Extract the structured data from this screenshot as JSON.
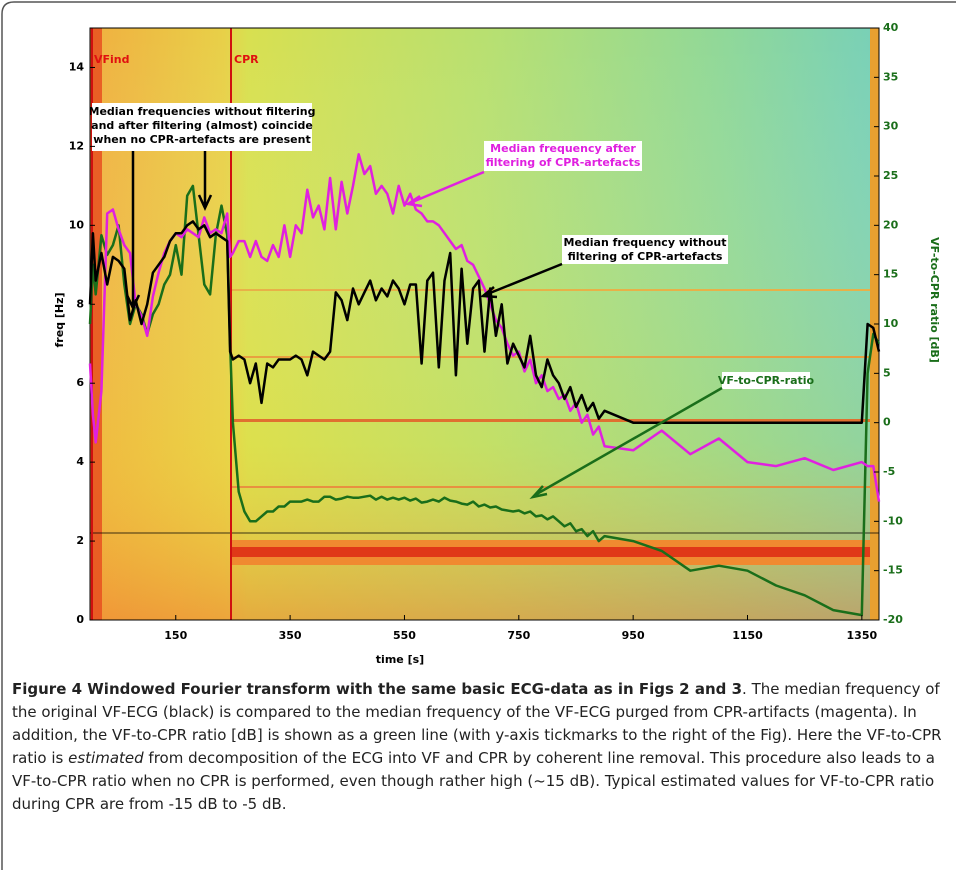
{
  "chart_data": {
    "type": "line",
    "x_label": "time [s]",
    "y_label": "freq [Hz]",
    "y2_label": "VF-to-CPR ratio [dB]",
    "xlim": [
      0,
      1380
    ],
    "xticks": [
      150,
      350,
      550,
      750,
      950,
      1150,
      1350
    ],
    "ylim": [
      0,
      15
    ],
    "yticks": [
      0,
      2,
      4,
      6,
      8,
      10,
      12,
      14
    ],
    "y2lim": [
      -20,
      40
    ],
    "y2ticks": [
      -20,
      -15,
      -10,
      -5,
      0,
      5,
      10,
      15,
      20,
      25,
      30,
      35,
      40
    ],
    "markers": [
      "VFind",
      "CPR"
    ],
    "annotations": [
      [
        "Median frequencies without filtering",
        "and after filtering (almost) coincide",
        "when no CPR-artefacts are present"
      ],
      [
        "Median frequency after",
        "filtering of CPR-artefacts"
      ],
      [
        "Median frequency without",
        "filtering of CPR-artefacts"
      ],
      [
        "VF-to-CPR-ratio"
      ]
    ],
    "x": [
      0,
      5,
      10,
      20,
      30,
      40,
      50,
      60,
      70,
      80,
      90,
      100,
      110,
      120,
      130,
      140,
      150,
      160,
      170,
      180,
      190,
      200,
      210,
      220,
      230,
      240,
      245,
      250,
      260,
      270,
      280,
      290,
      300,
      310,
      320,
      330,
      340,
      350,
      360,
      370,
      380,
      390,
      400,
      410,
      420,
      430,
      440,
      450,
      460,
      470,
      480,
      490,
      500,
      510,
      520,
      530,
      540,
      550,
      560,
      570,
      580,
      590,
      600,
      610,
      620,
      630,
      640,
      650,
      660,
      670,
      680,
      690,
      700,
      710,
      720,
      730,
      740,
      750,
      760,
      770,
      780,
      790,
      800,
      810,
      820,
      830,
      840,
      850,
      860,
      870,
      880,
      890,
      900,
      950,
      1000,
      1050,
      1100,
      1150,
      1200,
      1250,
      1300,
      1350,
      1360,
      1370,
      1380
    ],
    "series": [
      {
        "color": "#000000",
        "axis": "y",
        "values": [
          8.0,
          9.8,
          8.6,
          9.3,
          8.5,
          9.2,
          9.1,
          8.9,
          7.6,
          8.1,
          7.5,
          8.0,
          8.8,
          9.0,
          9.2,
          9.6,
          9.8,
          9.8,
          10.0,
          10.1,
          9.9,
          10.0,
          9.7,
          9.8,
          9.7,
          9.6,
          6.8,
          6.6,
          6.7,
          6.6,
          6.0,
          6.5,
          5.5,
          6.5,
          6.4,
          6.6,
          6.6,
          6.6,
          6.7,
          6.6,
          6.2,
          6.8,
          6.7,
          6.6,
          6.8,
          8.3,
          8.1,
          7.6,
          8.4,
          8.0,
          8.3,
          8.6,
          8.1,
          8.4,
          8.2,
          8.6,
          8.4,
          8.0,
          8.5,
          8.5,
          6.5,
          8.6,
          8.8,
          6.4,
          8.6,
          9.3,
          6.2,
          8.9,
          7.0,
          8.4,
          8.6,
          6.8,
          8.4,
          7.2,
          8.0,
          6.5,
          7.0,
          6.7,
          6.4,
          7.2,
          6.2,
          5.9,
          6.6,
          6.2,
          6.0,
          5.6,
          5.9,
          5.4,
          5.7,
          5.3,
          5.5,
          5.1,
          5.3,
          5.0,
          5.0,
          5.0,
          5.0,
          5.0,
          5.0,
          5.0,
          5.0,
          5.0,
          7.5,
          7.4,
          6.8
        ]
      },
      {
        "color": "#e020e0",
        "axis": "y",
        "values": [
          6.5,
          5.2,
          4.5,
          5.8,
          10.3,
          10.4,
          9.9,
          9.5,
          9.3,
          8.0,
          7.7,
          7.2,
          8.2,
          8.8,
          9.3,
          9.6,
          9.8,
          9.7,
          9.9,
          9.8,
          9.7,
          10.2,
          9.8,
          9.9,
          9.8,
          10.3,
          9.2,
          9.3,
          9.6,
          9.6,
          9.2,
          9.6,
          9.2,
          9.1,
          9.5,
          9.2,
          10.0,
          9.2,
          10.0,
          9.8,
          10.9,
          10.2,
          10.5,
          9.9,
          11.2,
          9.9,
          11.1,
          10.3,
          11.0,
          11.8,
          11.3,
          11.5,
          10.8,
          11.0,
          10.8,
          10.3,
          11.0,
          10.5,
          10.8,
          10.4,
          10.3,
          10.1,
          10.1,
          10.0,
          9.8,
          9.6,
          9.4,
          9.5,
          9.1,
          9.0,
          8.7,
          8.4,
          8.0,
          7.6,
          7.4,
          7.0,
          6.7,
          6.8,
          6.3,
          6.6,
          6.0,
          6.2,
          5.8,
          5.9,
          5.6,
          5.7,
          5.3,
          5.5,
          5.0,
          5.2,
          4.7,
          4.9,
          4.4,
          4.3,
          4.8,
          4.2,
          4.6,
          4.0,
          3.9,
          4.1,
          3.8,
          4.0,
          3.9,
          3.9,
          3.0
        ]
      },
      {
        "color": "#1a6e1a",
        "axis": "y2",
        "values": [
          10,
          16,
          13,
          19,
          17,
          18,
          20,
          14,
          10,
          12,
          11,
          9,
          11,
          12,
          14,
          15,
          18,
          15,
          23,
          24,
          19,
          14,
          13,
          19,
          22,
          19,
          8,
          0,
          -7,
          -9,
          -10,
          -10,
          -9.5,
          -9,
          -9,
          -8.5,
          -8.5,
          -8,
          -8,
          -8,
          -7.8,
          -8,
          -8,
          -7.5,
          -7.5,
          -7.8,
          -7.7,
          -7.5,
          -7.6,
          -7.6,
          -7.5,
          -7.4,
          -7.8,
          -7.5,
          -7.8,
          -7.6,
          -7.8,
          -7.6,
          -7.9,
          -7.7,
          -8.1,
          -8,
          -7.8,
          -8,
          -7.6,
          -7.9,
          -8,
          -8.2,
          -8.3,
          -8,
          -8.5,
          -8.3,
          -8.6,
          -8.5,
          -8.8,
          -8.9,
          -9,
          -8.9,
          -9.2,
          -9,
          -9.5,
          -9.4,
          -9.8,
          -9.5,
          -10,
          -10.5,
          -10.2,
          -11,
          -10.8,
          -11.5,
          -11,
          -12,
          -11.5,
          -12,
          -13,
          -15,
          -14.5,
          -15,
          -16.5,
          -17.5,
          -19,
          -19.5,
          5,
          9,
          8
        ]
      }
    ]
  },
  "caption": {
    "title": "Figure 4 Windowed Fourier transform with the same basic ECG-data as in Figs 2 and 3",
    "text_before": ". The median frequency of the original VF-ECG (black) is compared to the median frequency of the VF-ECG purged from CPR-artifacts (magenta). In addition, the VF-to-CPR ratio [dB] is shown as a green line (with y-axis tickmarks to the right of the Fig). Here the VF-to-CPR ratio is ",
    "emphasis": "estimated",
    "text_after": " from decomposition of the ECG into VF and CPR by coherent line removal. This procedure also leads to a VF-to-CPR ratio when no CPR is performed, even though rather high (~15 dB). Typical estimated values for VF-to-CPR ratio during CPR are from -15 dB to -5 dB."
  }
}
